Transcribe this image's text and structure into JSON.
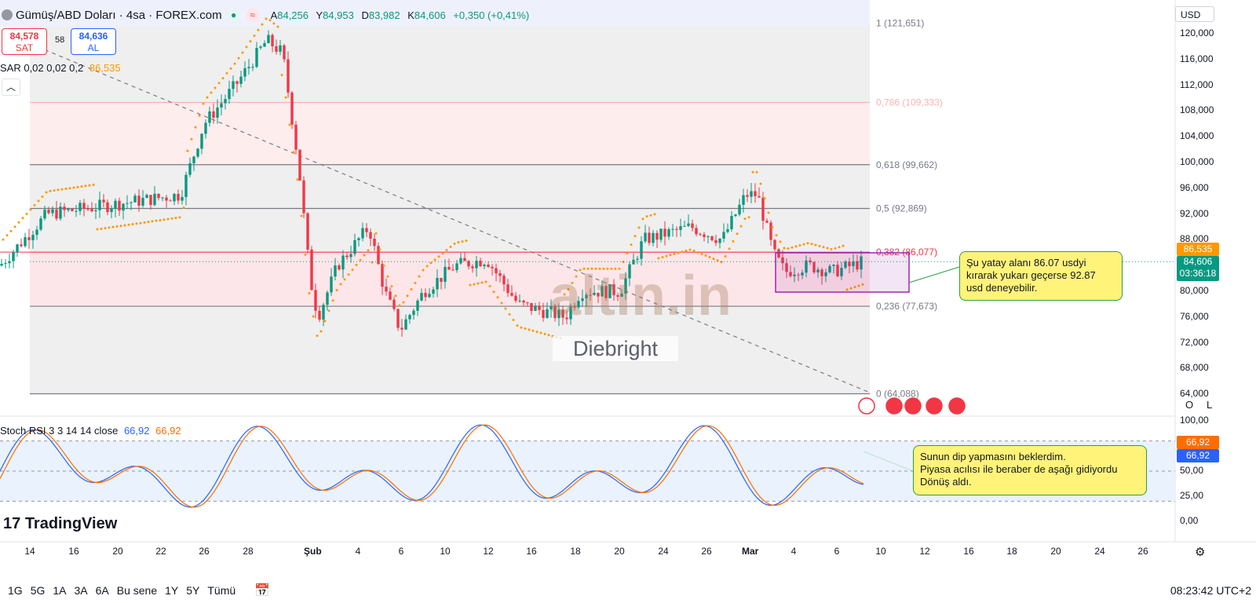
{
  "header": {
    "title": "Gümüş/ABD Doları · 4sa · FOREX.com",
    "ohlc": {
      "a_label": "A",
      "a": "84,256",
      "y_label": "Y",
      "y": "84,953",
      "d_label": "D",
      "d": "83,982",
      "k_label": "K",
      "k": "84,606",
      "change": "+0,350 (+0,41%)"
    }
  },
  "order": {
    "sell_price": "84,578",
    "sell_label": "SAT",
    "spread": "58",
    "buy_price": "84,636",
    "buy_label": "AL"
  },
  "indicator_sar": {
    "label": "SAR 0,02 0,02 0,2",
    "value": "86,535"
  },
  "indicator_stoch": {
    "label": "Stoch RSI 3 3 14 14 close",
    "k": "66,92",
    "d": "66,92"
  },
  "currency": "USD",
  "price_axis": {
    "labels": [
      "120,000",
      "116,000",
      "112,000",
      "108,000",
      "104,000",
      "100,000",
      "96,000",
      "92,000",
      "88,000",
      "80,000",
      "76,000",
      "72,000",
      "68,000",
      "64,000"
    ]
  },
  "price_tags": {
    "sar": "86,535",
    "last": "84,606",
    "countdown": "03:36:18"
  },
  "stoch_axis": {
    "labels": [
      "100,00",
      "50,00",
      "25,00",
      "0,00"
    ],
    "tag1": "66,92",
    "tag2": "66,92"
  },
  "fib_levels": [
    {
      "label": "1 (121,651)",
      "value": 121.651,
      "color": "#787b86"
    },
    {
      "label": "0,786 (109,333)",
      "value": 109.333,
      "color": "#f6b3b3"
    },
    {
      "label": "0,618 (99,662)",
      "value": 99.662,
      "color": "#787b86"
    },
    {
      "label": "0,5 (92,869)",
      "value": 92.869,
      "color": "#787b86"
    },
    {
      "label": "0,382 (86,077)",
      "value": 86.077,
      "color": "#f23645"
    },
    {
      "label": "0,236 (77,673)",
      "value": 77.673,
      "color": "#787b86"
    },
    {
      "label": "0 (64,088)",
      "value": 64.088,
      "color": "#787b86"
    }
  ],
  "time_axis": [
    "14",
    "16",
    "20",
    "22",
    "26",
    "28",
    "Şub",
    "4",
    "6",
    "10",
    "12",
    "16",
    "18",
    "20",
    "24",
    "26",
    "Mar",
    "4",
    "6",
    "10",
    "12",
    "16",
    "18",
    "20",
    "24",
    "26"
  ],
  "callouts": {
    "top": "Şu yatay alanı 86.07 usdyi\nkırarak yukarı geçerse 92.87\nusd deneyebilir.",
    "bottom": "Sunun dip yapmasını beklerdim.\nPiyasa acılısı ile beraber de aşağı gidiyordu\nDönüş aldı."
  },
  "watermark": {
    "brand": "altin.in",
    "name": "Diebright"
  },
  "logo": "TradingView",
  "bottom_bar": {
    "timeframes": [
      "1G",
      "5G",
      "1A",
      "3A",
      "6A",
      "Bu sene",
      "1Y",
      "5Y",
      "Tümü"
    ],
    "clock": "08:23:42 UTC+2"
  },
  "scale_buttons": {
    "log": "O",
    "linear": "L"
  },
  "colors": {
    "up": "#089981",
    "down": "#f23645",
    "sar": "#ff9800",
    "stoch_k": "#2962ff",
    "stoch_d": "#ff6d00",
    "callout_fill": "#fff37a",
    "callout_border": "#2e9d44",
    "box": "#9c27b0"
  }
}
